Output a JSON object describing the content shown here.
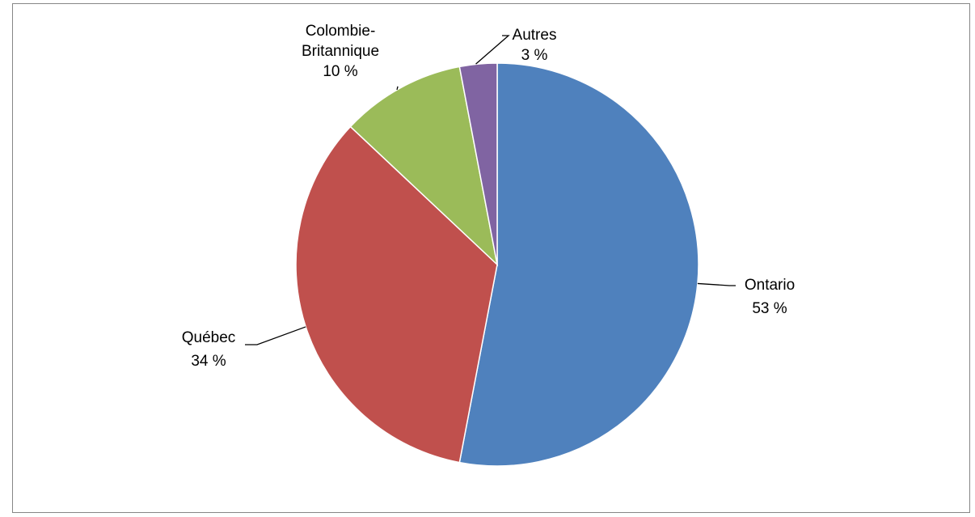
{
  "chart_data": {
    "type": "pie",
    "title": "",
    "categories": [
      "Ontario",
      "Québec",
      "Colombie-Britannique",
      "Autres"
    ],
    "values": [
      53,
      34,
      10,
      3
    ],
    "value_labels": [
      "53 %",
      "34 %",
      "10 %",
      "3 %"
    ],
    "label_lines": [
      [
        "Ontario"
      ],
      [
        "Québec"
      ],
      [
        "Colombie-",
        "Britannique"
      ],
      [
        "Autres"
      ]
    ],
    "colors": [
      "#4F81BD",
      "#C0504D",
      "#9BBB59",
      "#8064A2"
    ],
    "legend": "none",
    "start_angle": "12 o'clock",
    "direction": "clockwise"
  }
}
